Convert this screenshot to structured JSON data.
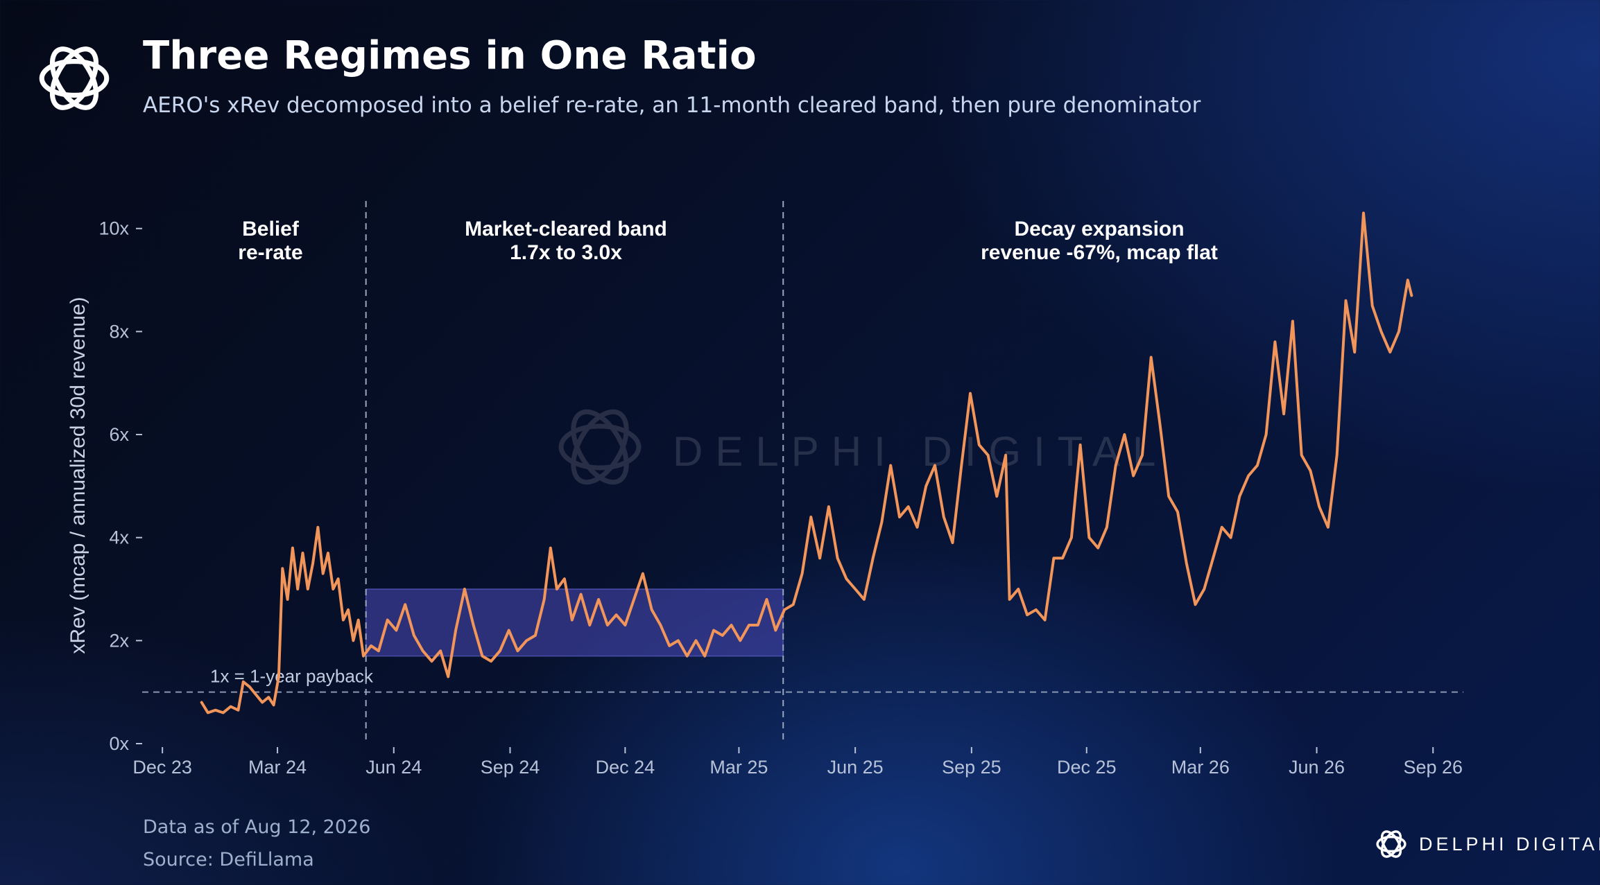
{
  "header": {
    "title": "Three Regimes in One Ratio",
    "subtitle": "AERO's xRev decomposed into a belief re-rate, an 11-month cleared band, then pure denominator"
  },
  "footer": {
    "data_as_of": "Data as of Aug 12, 2026",
    "source": "Source: DefiLlama"
  },
  "brand": {
    "name": "DELPHI DIGITAL",
    "watermark": "DELPHI DIGITAL",
    "logo_icon": "delphi-knot-icon"
  },
  "colors": {
    "line": "#f2955a",
    "band_fill": "#4a4ab8",
    "text": "#ffffff",
    "muted": "#9fb0cc"
  },
  "chart_data": {
    "type": "line",
    "ylabel": "xRev (mcap / annualized 30d revenue)",
    "xlabel": "",
    "y_ticks": [
      {
        "value": 0,
        "label": "0x"
      },
      {
        "value": 2,
        "label": "2x"
      },
      {
        "value": 4,
        "label": "4x"
      },
      {
        "value": 6,
        "label": "6x"
      },
      {
        "value": 8,
        "label": "8x"
      },
      {
        "value": 10,
        "label": "10x"
      }
    ],
    "x_ticks": [
      {
        "date": "2023-12-01",
        "label": "Dec 23"
      },
      {
        "date": "2024-03-01",
        "label": "Mar 24"
      },
      {
        "date": "2024-06-01",
        "label": "Jun 24"
      },
      {
        "date": "2024-09-01",
        "label": "Sep 24"
      },
      {
        "date": "2024-12-01",
        "label": "Dec 24"
      },
      {
        "date": "2025-03-01",
        "label": "Mar 25"
      },
      {
        "date": "2025-06-01",
        "label": "Jun 25"
      },
      {
        "date": "2025-09-01",
        "label": "Sep 25"
      },
      {
        "date": "2025-12-01",
        "label": "Dec 25"
      },
      {
        "date": "2026-03-01",
        "label": "Mar 26"
      },
      {
        "date": "2026-06-01",
        "label": "Jun 26"
      },
      {
        "date": "2026-09-01",
        "label": "Sep 26"
      }
    ],
    "xlim": [
      "2023-11-15",
      "2026-09-25"
    ],
    "ylim": [
      0,
      10.4
    ],
    "grid": false,
    "reference_line": {
      "value": 1,
      "label": "1x = 1-year payback"
    },
    "band": {
      "from": "2024-05-10",
      "to": "2025-04-05",
      "low": 1.7,
      "high": 3.0
    },
    "regime_dividers": [
      "2024-05-10",
      "2025-04-05"
    ],
    "regimes": [
      {
        "line1": "Belief",
        "line2": "re-rate"
      },
      {
        "line1": "Market-cleared band",
        "line2": "1.7x to 3.0x"
      },
      {
        "line1": "Decay expansion",
        "line2": "revenue -67%, mcap flat"
      }
    ],
    "series": [
      {
        "points": [
          [
            "2024-01-01",
            0.8
          ],
          [
            "2024-01-06",
            0.6
          ],
          [
            "2024-01-12",
            0.65
          ],
          [
            "2024-01-18",
            0.6
          ],
          [
            "2024-01-24",
            0.72
          ],
          [
            "2024-01-30",
            0.65
          ],
          [
            "2024-02-03",
            1.2
          ],
          [
            "2024-02-08",
            1.1
          ],
          [
            "2024-02-13",
            0.95
          ],
          [
            "2024-02-18",
            0.8
          ],
          [
            "2024-02-23",
            0.9
          ],
          [
            "2024-02-27",
            0.75
          ],
          [
            "2024-03-02",
            1.3
          ],
          [
            "2024-03-05",
            3.4
          ],
          [
            "2024-03-09",
            2.8
          ],
          [
            "2024-03-13",
            3.8
          ],
          [
            "2024-03-17",
            3.0
          ],
          [
            "2024-03-21",
            3.7
          ],
          [
            "2024-03-25",
            3.0
          ],
          [
            "2024-03-29",
            3.5
          ],
          [
            "2024-04-02",
            4.2
          ],
          [
            "2024-04-06",
            3.3
          ],
          [
            "2024-04-10",
            3.7
          ],
          [
            "2024-04-14",
            3.0
          ],
          [
            "2024-04-18",
            3.2
          ],
          [
            "2024-04-22",
            2.4
          ],
          [
            "2024-04-26",
            2.6
          ],
          [
            "2024-04-30",
            2.0
          ],
          [
            "2024-05-04",
            2.4
          ],
          [
            "2024-05-08",
            1.7
          ],
          [
            "2024-05-14",
            1.9
          ],
          [
            "2024-05-20",
            1.8
          ],
          [
            "2024-05-27",
            2.4
          ],
          [
            "2024-06-03",
            2.2
          ],
          [
            "2024-06-10",
            2.7
          ],
          [
            "2024-06-17",
            2.1
          ],
          [
            "2024-06-24",
            1.8
          ],
          [
            "2024-07-01",
            1.6
          ],
          [
            "2024-07-08",
            1.8
          ],
          [
            "2024-07-14",
            1.3
          ],
          [
            "2024-07-20",
            2.2
          ],
          [
            "2024-07-27",
            3.0
          ],
          [
            "2024-08-03",
            2.3
          ],
          [
            "2024-08-10",
            1.7
          ],
          [
            "2024-08-17",
            1.6
          ],
          [
            "2024-08-24",
            1.8
          ],
          [
            "2024-08-31",
            2.2
          ],
          [
            "2024-09-07",
            1.8
          ],
          [
            "2024-09-14",
            2.0
          ],
          [
            "2024-09-21",
            2.1
          ],
          [
            "2024-09-28",
            2.8
          ],
          [
            "2024-10-03",
            3.8
          ],
          [
            "2024-10-08",
            3.0
          ],
          [
            "2024-10-14",
            3.2
          ],
          [
            "2024-10-20",
            2.4
          ],
          [
            "2024-10-27",
            2.9
          ],
          [
            "2024-11-03",
            2.3
          ],
          [
            "2024-11-10",
            2.8
          ],
          [
            "2024-11-17",
            2.3
          ],
          [
            "2024-11-24",
            2.5
          ],
          [
            "2024-12-01",
            2.3
          ],
          [
            "2024-12-08",
            2.8
          ],
          [
            "2024-12-15",
            3.3
          ],
          [
            "2024-12-22",
            2.6
          ],
          [
            "2024-12-29",
            2.3
          ],
          [
            "2025-01-05",
            1.9
          ],
          [
            "2025-01-12",
            2.0
          ],
          [
            "2025-01-19",
            1.7
          ],
          [
            "2025-01-26",
            2.0
          ],
          [
            "2025-02-02",
            1.7
          ],
          [
            "2025-02-09",
            2.2
          ],
          [
            "2025-02-16",
            2.1
          ],
          [
            "2025-02-23",
            2.3
          ],
          [
            "2025-03-02",
            2.0
          ],
          [
            "2025-03-09",
            2.3
          ],
          [
            "2025-03-16",
            2.3
          ],
          [
            "2025-03-23",
            2.8
          ],
          [
            "2025-03-30",
            2.2
          ],
          [
            "2025-04-06",
            2.6
          ],
          [
            "2025-04-13",
            2.7
          ],
          [
            "2025-04-20",
            3.3
          ],
          [
            "2025-04-27",
            4.4
          ],
          [
            "2025-05-04",
            3.6
          ],
          [
            "2025-05-11",
            4.6
          ],
          [
            "2025-05-18",
            3.6
          ],
          [
            "2025-05-25",
            3.2
          ],
          [
            "2025-06-01",
            3.0
          ],
          [
            "2025-06-08",
            2.8
          ],
          [
            "2025-06-15",
            3.6
          ],
          [
            "2025-06-22",
            4.3
          ],
          [
            "2025-06-29",
            5.4
          ],
          [
            "2025-07-06",
            4.4
          ],
          [
            "2025-07-13",
            4.6
          ],
          [
            "2025-07-20",
            4.2
          ],
          [
            "2025-07-27",
            5.0
          ],
          [
            "2025-08-03",
            5.4
          ],
          [
            "2025-08-10",
            4.4
          ],
          [
            "2025-08-17",
            3.9
          ],
          [
            "2025-08-24",
            5.4
          ],
          [
            "2025-08-31",
            6.8
          ],
          [
            "2025-09-07",
            5.8
          ],
          [
            "2025-09-14",
            5.6
          ],
          [
            "2025-09-21",
            4.8
          ],
          [
            "2025-09-28",
            5.6
          ],
          [
            "2025-10-01",
            2.8
          ],
          [
            "2025-10-08",
            3.0
          ],
          [
            "2025-10-15",
            2.5
          ],
          [
            "2025-10-22",
            2.6
          ],
          [
            "2025-10-29",
            2.4
          ],
          [
            "2025-11-05",
            3.6
          ],
          [
            "2025-11-12",
            3.6
          ],
          [
            "2025-11-19",
            4.0
          ],
          [
            "2025-11-26",
            5.8
          ],
          [
            "2025-12-03",
            4.0
          ],
          [
            "2025-12-10",
            3.8
          ],
          [
            "2025-12-17",
            4.2
          ],
          [
            "2025-12-24",
            5.4
          ],
          [
            "2025-12-31",
            6.0
          ],
          [
            "2026-01-07",
            5.2
          ],
          [
            "2026-01-14",
            5.6
          ],
          [
            "2026-01-21",
            7.5
          ],
          [
            "2026-01-28",
            6.2
          ],
          [
            "2026-02-04",
            4.8
          ],
          [
            "2026-02-11",
            4.5
          ],
          [
            "2026-02-18",
            3.5
          ],
          [
            "2026-02-25",
            2.7
          ],
          [
            "2026-03-04",
            3.0
          ],
          [
            "2026-03-11",
            3.6
          ],
          [
            "2026-03-18",
            4.2
          ],
          [
            "2026-03-25",
            4.0
          ],
          [
            "2026-04-01",
            4.8
          ],
          [
            "2026-04-08",
            5.2
          ],
          [
            "2026-04-15",
            5.4
          ],
          [
            "2026-04-22",
            6.0
          ],
          [
            "2026-04-29",
            7.8
          ],
          [
            "2026-05-06",
            6.4
          ],
          [
            "2026-05-13",
            8.2
          ],
          [
            "2026-05-20",
            5.6
          ],
          [
            "2026-05-27",
            5.3
          ],
          [
            "2026-06-03",
            4.6
          ],
          [
            "2026-06-10",
            4.2
          ],
          [
            "2026-06-17",
            5.6
          ],
          [
            "2026-06-24",
            8.6
          ],
          [
            "2026-07-01",
            7.6
          ],
          [
            "2026-07-08",
            10.3
          ],
          [
            "2026-07-15",
            8.5
          ],
          [
            "2026-07-22",
            8.0
          ],
          [
            "2026-07-29",
            7.6
          ],
          [
            "2026-08-05",
            8.0
          ],
          [
            "2026-08-12",
            9.0
          ],
          [
            "2026-08-15",
            8.7
          ]
        ]
      }
    ]
  }
}
